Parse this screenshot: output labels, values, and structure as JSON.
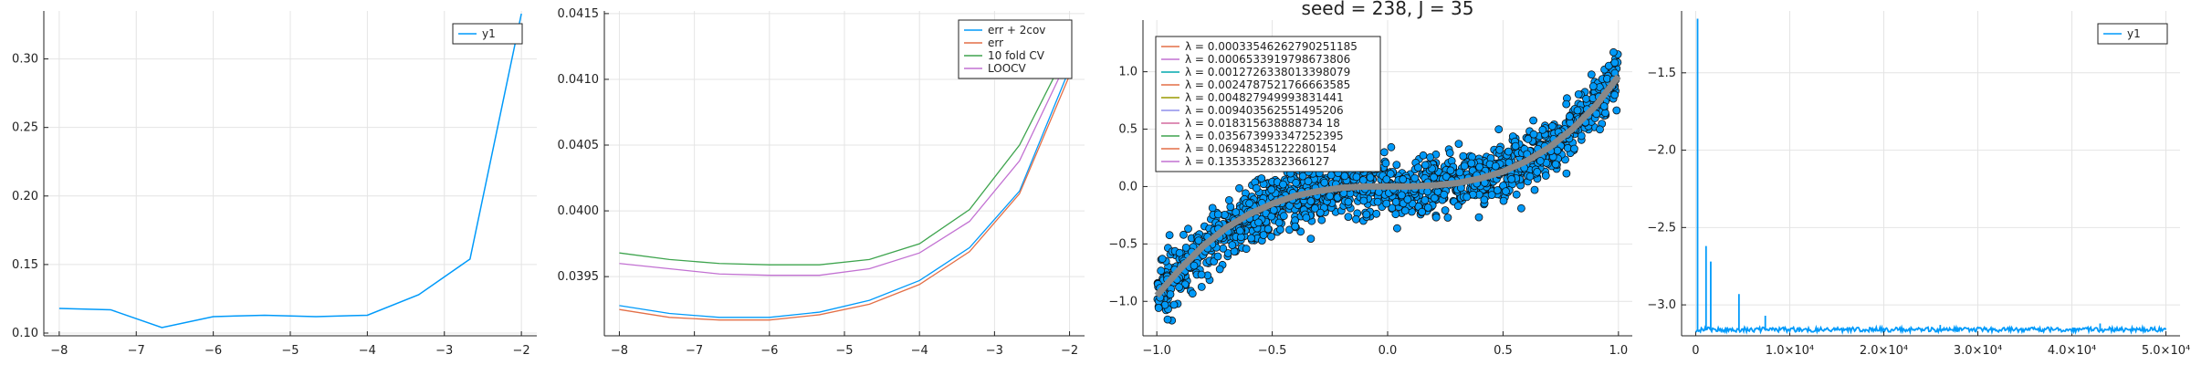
{
  "chart_data": [
    {
      "type": "line",
      "title": "",
      "xlabel": "",
      "ylabel": "",
      "xlim": [
        -8.2,
        -1.8
      ],
      "ylim": [
        0.098,
        0.335
      ],
      "xticks": [
        -8,
        -7,
        -6,
        -5,
        -4,
        -3,
        -2
      ],
      "xtick_labels": [
        "−8",
        "−7",
        "−6",
        "−5",
        "−4",
        "−3",
        "−2"
      ],
      "yticks": [
        0.1,
        0.15,
        0.2,
        0.25,
        0.3
      ],
      "ytick_labels": [
        "0.10",
        "0.15",
        "0.20",
        "0.25",
        "0.30"
      ],
      "grid": true,
      "legend": "top-right",
      "series": [
        {
          "name": "y1",
          "color": "#009AFA",
          "x": [
            -8.0,
            -7.333,
            -6.667,
            -6.0,
            -5.333,
            -4.667,
            -4.0,
            -3.333,
            -2.667,
            -2.0
          ],
          "y": [
            0.118,
            0.117,
            0.104,
            0.112,
            0.113,
            0.112,
            0.113,
            0.128,
            0.154,
            0.333
          ]
        }
      ]
    },
    {
      "type": "line",
      "title": "",
      "xlabel": "",
      "ylabel": "",
      "xlim": [
        -8.2,
        -1.8
      ],
      "ylim": [
        0.03905,
        0.04152
      ],
      "xticks": [
        -8,
        -7,
        -6,
        -5,
        -4,
        -3,
        -2
      ],
      "xtick_labels": [
        "−8",
        "−7",
        "−6",
        "−5",
        "−4",
        "−3",
        "−2"
      ],
      "yticks": [
        0.0395,
        0.04,
        0.0405,
        0.041,
        0.0415
      ],
      "ytick_labels": [
        "0.0395",
        "0.0400",
        "0.0405",
        "0.0410",
        "0.0415"
      ],
      "grid": true,
      "legend": "top-right",
      "x": [
        -8.0,
        -7.333,
        -6.667,
        -6.0,
        -5.333,
        -4.667,
        -4.0,
        -3.333,
        -2.667,
        -2.0
      ],
      "series": [
        {
          "name": "err + 2cov",
          "color": "#009AFA",
          "y": [
            0.03928,
            0.03922,
            0.03919,
            0.03919,
            0.03923,
            0.03932,
            0.03947,
            0.03972,
            0.04015,
            0.04108
          ]
        },
        {
          "name": "err",
          "color": "#E36F47",
          "y": [
            0.03925,
            0.03919,
            0.03917,
            0.03917,
            0.03921,
            0.03929,
            0.03944,
            0.03969,
            0.04013,
            0.04103
          ]
        },
        {
          "name": "10 fold CV",
          "color": "#3EA44E",
          "y": [
            0.03968,
            0.03963,
            0.0396,
            0.03959,
            0.03959,
            0.03963,
            0.03975,
            0.04001,
            0.0405,
            0.04125
          ]
        },
        {
          "name": "LOOCV",
          "color": "#C271D2",
          "y": [
            0.0396,
            0.03956,
            0.03952,
            0.03951,
            0.03951,
            0.03956,
            0.03968,
            0.03992,
            0.04038,
            0.04118
          ]
        }
      ]
    },
    {
      "type": "scatter",
      "title": "seed = 238, J = 35",
      "xlabel": "",
      "ylabel": "",
      "xlim": [
        -1.06,
        1.06
      ],
      "ylim": [
        -1.3,
        1.45
      ],
      "xticks": [
        -1.0,
        -0.5,
        0.0,
        0.5,
        1.0
      ],
      "xtick_labels": [
        "−1.0",
        "−0.5",
        "0.0",
        "0.5",
        "1.0"
      ],
      "yticks": [
        -1.0,
        -0.5,
        0.0,
        0.5,
        1.0
      ],
      "ytick_labels": [
        "−1.0",
        "−0.5",
        "0.0",
        "0.5",
        "1.0"
      ],
      "grid": true,
      "legend": "top-left",
      "scatter_color": "#009AFA",
      "scatter_description": "about 1500 noisy points scattered around a cubic-shaped curve y ≈ x^3, roughly from -1.2 to 1.4",
      "curve": {
        "x": [
          -1.0,
          -0.9,
          -0.8,
          -0.7,
          -0.6,
          -0.5,
          -0.4,
          -0.3,
          -0.2,
          -0.1,
          0.0,
          0.1,
          0.2,
          0.3,
          0.4,
          0.5,
          0.6,
          0.7,
          0.8,
          0.9,
          1.0
        ],
        "y": [
          -0.95,
          -0.72,
          -0.52,
          -0.36,
          -0.24,
          -0.15,
          -0.08,
          -0.04,
          -0.01,
          0.0,
          0.0,
          0.0,
          0.01,
          0.03,
          0.07,
          0.13,
          0.22,
          0.34,
          0.5,
          0.7,
          0.96
        ],
        "color": "#888888"
      },
      "legend_series": [
        {
          "name": "λ = 0.00033546262790251185",
          "color": "#E36F47"
        },
        {
          "name": "λ = 0.0006533919798673806",
          "color": "#C271D2"
        },
        {
          "name": "λ = 0.0012726338013398079",
          "color": "#00A9AD"
        },
        {
          "name": "λ = 0.0024787521766663585",
          "color": "#E36F47"
        },
        {
          "name": "λ = 0.004827949993831441",
          "color": "#9A9A00"
        },
        {
          "name": "λ = 0.009403562551495206",
          "color": "#8F8FEB"
        },
        {
          "name": "λ = 0.018315638888734 18",
          "color": "#D46A9E"
        },
        {
          "name": "λ = 0.035673993347252395",
          "color": "#3EA44E"
        },
        {
          "name": "λ = 0.06948345122280154",
          "color": "#E36F47"
        },
        {
          "name": "λ = 0.1353352832366127",
          "color": "#C271D2"
        }
      ]
    },
    {
      "type": "line",
      "title": "",
      "xlabel": "",
      "ylabel": "",
      "xlim": [
        -1500,
        51500
      ],
      "ylim": [
        -3.2,
        -1.1
      ],
      "xticks": [
        0,
        10000,
        20000,
        30000,
        40000,
        50000
      ],
      "xtick_labels": [
        "0",
        "1.0×10⁴",
        "2.0×10⁴",
        "3.0×10⁴",
        "4.0×10⁴",
        "5.0×10⁴"
      ],
      "yticks": [
        -1.5,
        -2.0,
        -2.5,
        -3.0
      ],
      "ytick_labels": [
        "−1.5",
        "−2.0",
        "−2.5",
        "−3.0"
      ],
      "grid": true,
      "legend": "top-right",
      "series": [
        {
          "name": "y1",
          "color": "#009AFA",
          "description": "noisy loss trace near -3.16 with early spikes",
          "baseline": -3.16,
          "spikes": [
            {
              "x": 200,
              "y": -1.15
            },
            {
              "x": 1100,
              "y": -2.62
            },
            {
              "x": 1600,
              "y": -2.72
            },
            {
              "x": 4600,
              "y": -2.93
            },
            {
              "x": 7400,
              "y": -3.07
            },
            {
              "x": 26000,
              "y": -3.13
            },
            {
              "x": 43000,
              "y": -3.12
            }
          ]
        }
      ]
    }
  ]
}
